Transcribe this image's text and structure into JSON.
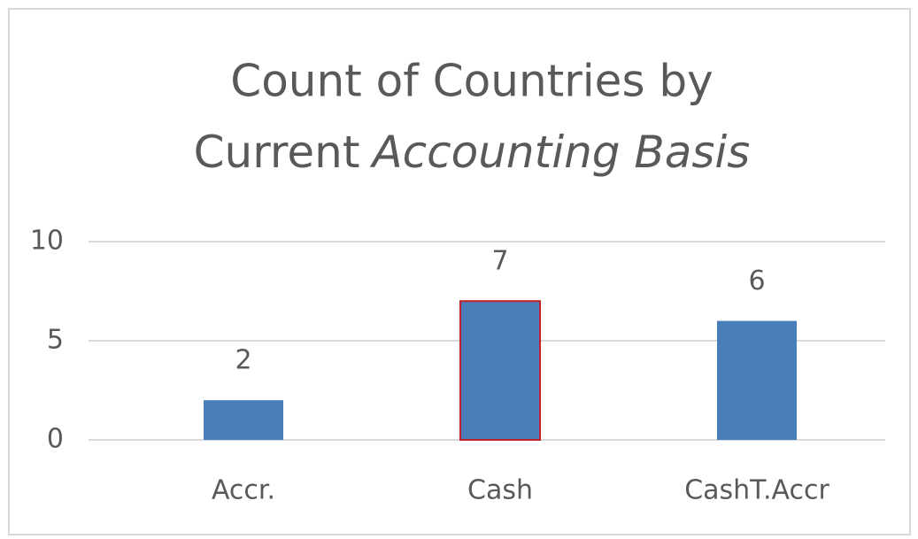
{
  "chart_data": {
    "type": "bar",
    "title": [
      "Count of Countries by",
      "Current",
      "Accounting Basis"
    ],
    "categories": [
      "Accr.",
      "Cash",
      "CashT.Accr"
    ],
    "values": [
      2,
      7,
      6
    ],
    "color": "#4a7ebb",
    "highlight": 1,
    "highlight_color": "#c0202a",
    "ylim": [
      0,
      10
    ],
    "yticks": [
      0,
      5,
      10
    ],
    "grid": true,
    "data_labels": true
  }
}
